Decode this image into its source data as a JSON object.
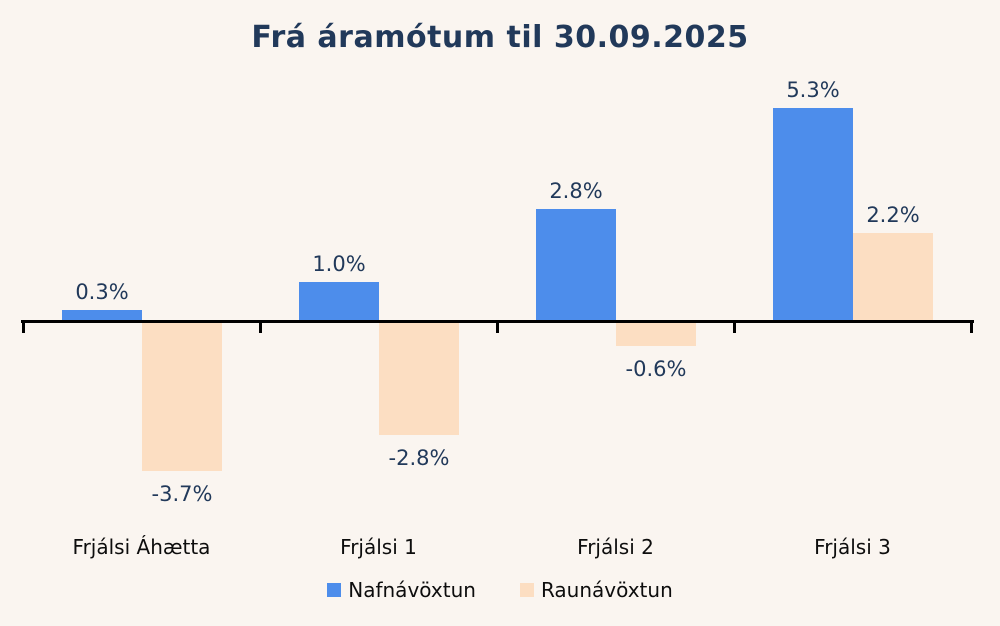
{
  "title": "Frá áramótum til 30.09.2025",
  "colors": {
    "background": "#faf5f0",
    "series_blue": "#4d8deb",
    "series_peach": "#fcdec2",
    "title_text": "#21395a",
    "value_label_text": "#21395a",
    "category_text": "#0d0d0d",
    "axis": "#000000"
  },
  "chart_data": {
    "type": "bar",
    "title": "Frá áramótum til 30.09.2025",
    "categories": [
      "Frjálsi Áhætta",
      "Frjálsi 1",
      "Frjálsi 2",
      "Frjálsi 3"
    ],
    "series": [
      {
        "name": "Nafnávöxtun",
        "color": "#4d8deb",
        "values": [
          0.3,
          1.0,
          2.8,
          5.3
        ]
      },
      {
        "name": "Raunávöxtun",
        "color": "#fcdec2",
        "values": [
          -3.7,
          -2.8,
          -0.6,
          2.2
        ]
      }
    ],
    "value_labels": [
      [
        "0.3%",
        "1.0%",
        "2.8%",
        "5.3%"
      ],
      [
        "-3.7%",
        "-2.8%",
        "-0.6%",
        "2.2%"
      ]
    ],
    "xlabel": "",
    "ylabel": "",
    "ylim": [
      -5,
      6.5
    ],
    "grid": false,
    "data_labels": true,
    "legend_position": "bottom",
    "baseline": 0
  },
  "legend": {
    "items": [
      {
        "label": "Nafnávöxtun",
        "color": "#4d8deb"
      },
      {
        "label": "Raunávöxtun",
        "color": "#fcdec2"
      }
    ]
  }
}
